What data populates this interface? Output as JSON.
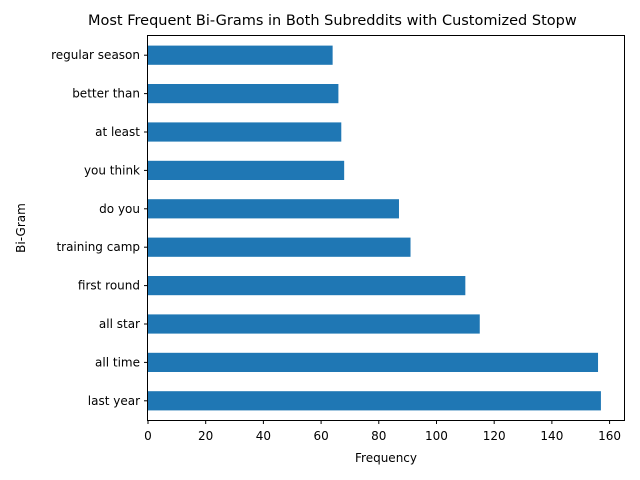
{
  "chart_data": {
    "type": "bar",
    "orientation": "horizontal",
    "title": "Most Frequent Bi-Grams in Both Subreddits with Customized Stopw",
    "xlabel": "Frequency",
    "ylabel": "Bi-Gram",
    "categories": [
      "last year",
      "all time",
      "all star",
      "first round",
      "training camp",
      "do you",
      "you think",
      "at least",
      "better than",
      "regular season"
    ],
    "values": [
      157,
      156,
      115,
      110,
      91,
      87,
      68,
      67,
      66,
      64
    ],
    "xlim": [
      0,
      165
    ],
    "xticks": [
      "0",
      "20",
      "40",
      "60",
      "80",
      "100",
      "120",
      "140",
      "160"
    ],
    "bar_color": "#1f77b4",
    "grid": false,
    "legend": "none"
  }
}
